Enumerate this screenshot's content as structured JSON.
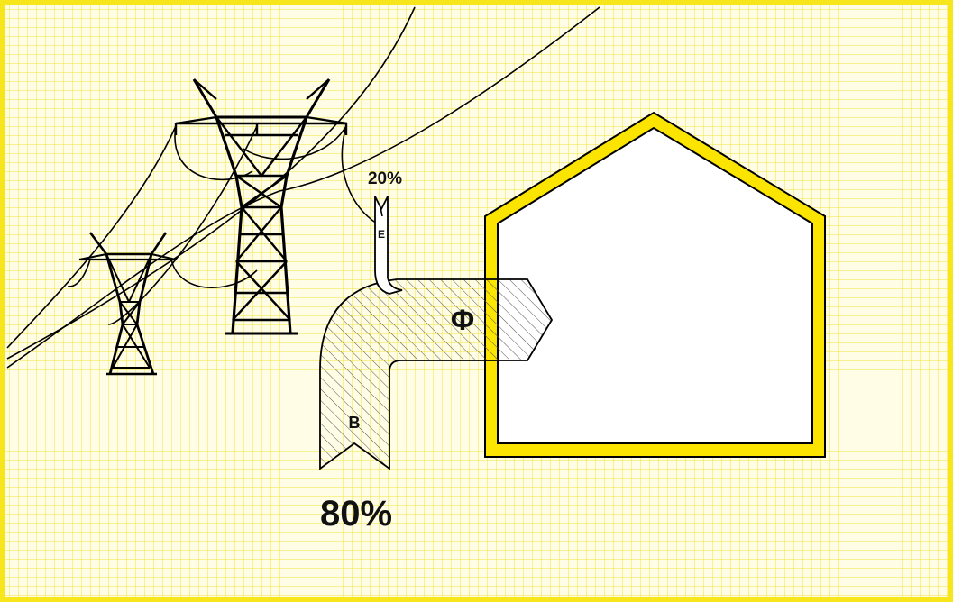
{
  "colors": {
    "grid_background": "#fffde6",
    "grid_line": "#f2e43c",
    "frame": "#f7e61c",
    "house_wall": "#fbe500",
    "outline": "#000000",
    "hatch": "#555555"
  },
  "labels": {
    "percent_small": "20%",
    "percent_large": "80%",
    "flow_small": "E",
    "flow_large": "B",
    "flow_total": "Φ"
  },
  "icons": {
    "tower_front": "power-pylon-icon",
    "tower_back": "power-pylon-icon",
    "building": "house-outline-icon"
  }
}
